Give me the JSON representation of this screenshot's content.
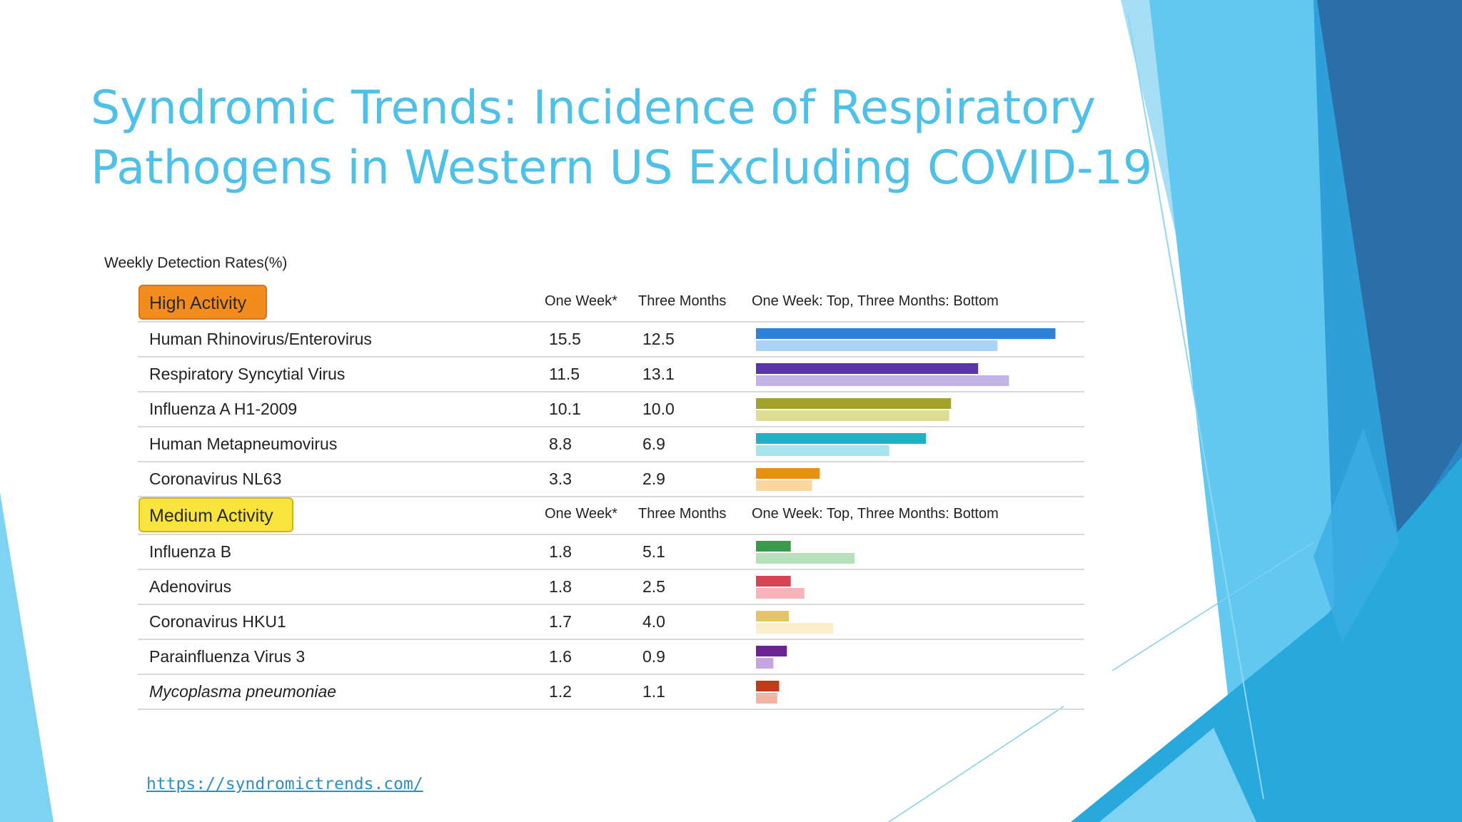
{
  "slide": {
    "title_line1": "Syndromic Trends: Incidence of Respiratory",
    "title_line2": "Pathogens in Western US Excluding COVID-19",
    "source_url": "https://syndromictrends.com/"
  },
  "chart_data": {
    "type": "table",
    "subtitle": "Weekly Detection Rates(%)",
    "columns": [
      "One Week*",
      "Three Months",
      "One Week: Top, Three Months: Bottom"
    ],
    "bar_scale_max": 16,
    "groups": [
      {
        "label": "High Activity",
        "badge_color": "#f28c1c",
        "badge_border": "#d9741a",
        "rows": [
          {
            "name": "Human Rhinovirus/Enterovirus",
            "one_week": "15.5",
            "three_months": "12.5",
            "week_color": "#2a83d8",
            "month_color": "#a9d3f7",
            "italic": false
          },
          {
            "name": "Respiratory Syncytial Virus",
            "one_week": "11.5",
            "three_months": "13.1",
            "week_color": "#5a35a8",
            "month_color": "#c4b3e6",
            "italic": false
          },
          {
            "name": "Influenza A H1-2009",
            "one_week": "10.1",
            "three_months": "10.0",
            "week_color": "#a3a22a",
            "month_color": "#dddd92",
            "italic": false
          },
          {
            "name": "Human Metapneumovirus",
            "one_week": "8.8",
            "three_months": "6.9",
            "week_color": "#21b1c4",
            "month_color": "#a6e5ee",
            "italic": false
          },
          {
            "name": "Coronavirus NL63",
            "one_week": "3.3",
            "three_months": "2.9",
            "week_color": "#e8900e",
            "month_color": "#fad6a0",
            "italic": false
          }
        ]
      },
      {
        "label": "Medium Activity",
        "badge_color": "#f8e43a",
        "badge_border": "#c9b52a",
        "rows": [
          {
            "name": "Influenza B",
            "one_week": "1.8",
            "three_months": "5.1",
            "week_color": "#3b9a4a",
            "month_color": "#b5e0b9",
            "italic": false
          },
          {
            "name": "Adenovirus",
            "one_week": "1.8",
            "three_months": "2.5",
            "week_color": "#d94452",
            "month_color": "#f6b3bb",
            "italic": false
          },
          {
            "name": "Coronavirus HKU1",
            "one_week": "1.7",
            "three_months": "4.0",
            "week_color": "#e5c56a",
            "month_color": "#fbeecb",
            "italic": false
          },
          {
            "name": "Parainfluenza Virus 3",
            "one_week": "1.6",
            "three_months": "0.9",
            "week_color": "#6b2296",
            "month_color": "#c6a6de",
            "italic": false
          },
          {
            "name": "Mycoplasma pneumoniae",
            "one_week": "1.2",
            "three_months": "1.1",
            "week_color": "#c13a1a",
            "month_color": "#f0b5a5",
            "italic": true
          }
        ]
      }
    ]
  }
}
